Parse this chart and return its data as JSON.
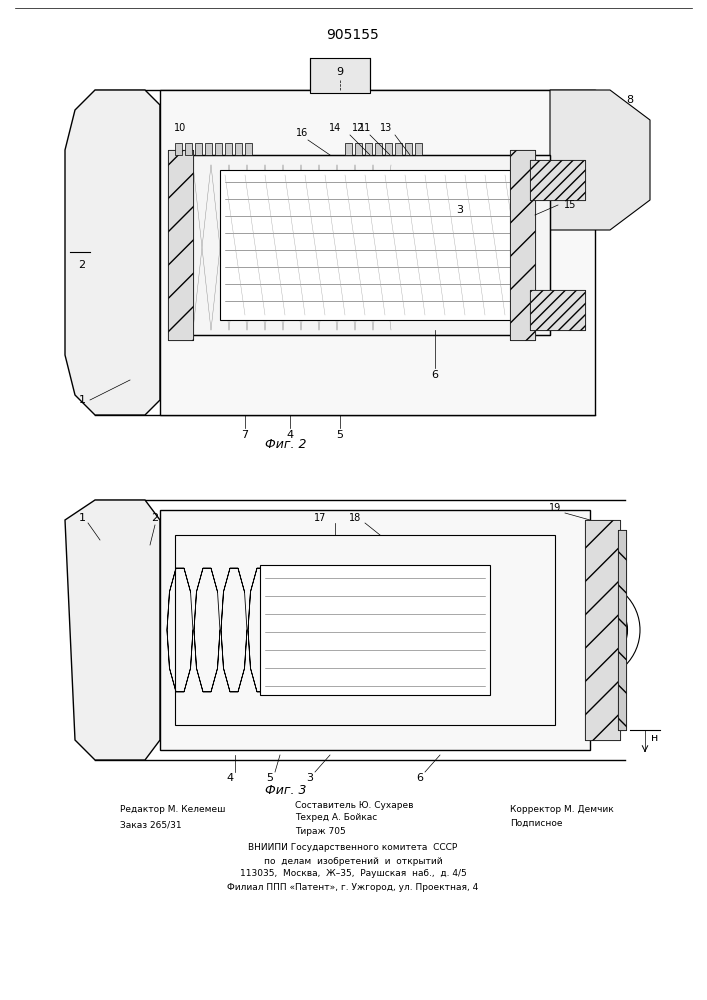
{
  "patent_number": "905155",
  "background_color": "#ffffff",
  "line_color": "#000000",
  "fig_width": 7.07,
  "fig_height": 10.0,
  "dpi": 100,
  "footer_lines": [
    [
      "Редактор М. Келемеш",
      "Составитель Ю. Сухарев",
      "Корректор М. Демчик"
    ],
    [
      "Заказ 265/31",
      "Техред А. Бойкас",
      "Подписное"
    ],
    [
      "",
      "Тираж 705",
      ""
    ],
    [
      "ВНИИПИ Государственного комитета СССР"
    ],
    [
      "по делам изобретений и открытий"
    ],
    [
      "113035, Москва, Ж–35, Раушская наб., д. 4/5"
    ],
    [
      "Филиал ППП «Патент», г. Ужгород, ул. Проектная, 4"
    ]
  ]
}
